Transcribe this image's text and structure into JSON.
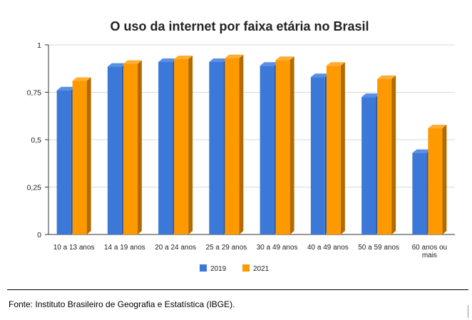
{
  "chart_data": {
    "type": "bar",
    "title": "O uso da internet por faixa etária no Brasil",
    "categories": [
      [
        "10 a 13 anos"
      ],
      [
        "14 a 19 anos"
      ],
      [
        "20 a 24 anos"
      ],
      [
        "25 a 29 anos"
      ],
      [
        "30 a 49 anos"
      ],
      [
        "40 a 49 anos"
      ],
      [
        "50 a 59 anos"
      ],
      [
        "60 anos ou",
        "mais"
      ]
    ],
    "series": [
      {
        "name": "2019",
        "color": "#3c78d8",
        "side_color": "#2a56a0",
        "top_color": "#5a8fe6",
        "values": [
          0.76,
          0.885,
          0.91,
          0.91,
          0.89,
          0.83,
          0.725,
          0.43
        ]
      },
      {
        "name": "2021",
        "color": "#ff9900",
        "side_color": "#b36b00",
        "top_color": "#ffad33",
        "values": [
          0.81,
          0.9,
          0.925,
          0.93,
          0.92,
          0.89,
          0.82,
          0.56
        ]
      }
    ],
    "yticks": [
      {
        "value": 0,
        "label": "0"
      },
      {
        "value": 0.25,
        "label": "0,25"
      },
      {
        "value": 0.5,
        "label": "0,5"
      },
      {
        "value": 0.75,
        "label": "0,75"
      },
      {
        "value": 1,
        "label": "1"
      }
    ],
    "ylim": [
      0,
      1
    ],
    "xlabel": "",
    "ylabel": "",
    "grid": true,
    "legend_position": "bottom"
  },
  "footer": {
    "source": "Fonte: Instituto Brasileiro de Geografia e Estatística (IBGE)."
  }
}
